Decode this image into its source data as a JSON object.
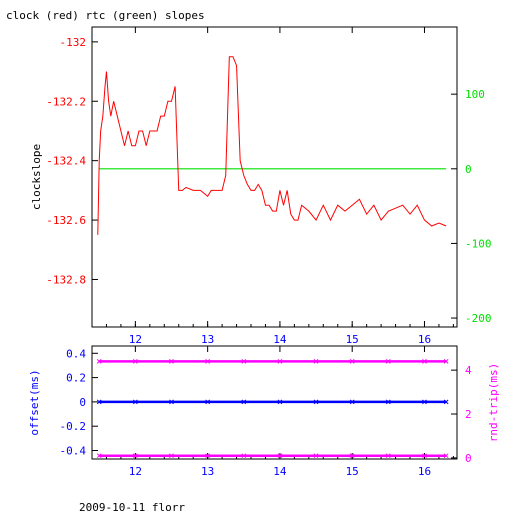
{
  "title": "clock (red) rtc (green) slopes",
  "footer": "2009-10-11 florr",
  "colors": {
    "red": "#ff0000",
    "green": "#00e000",
    "blue": "#0000ff",
    "magenta": "#ff00ff",
    "axis": "#000000"
  },
  "chart_data": [
    {
      "type": "line",
      "name": "top",
      "ylabel": "clockslope",
      "xlim": [
        11.4,
        16.45
      ],
      "ylim": [
        -132.96,
        -131.95
      ],
      "y2lim": [
        -212,
        190
      ],
      "xticks": [
        12,
        13,
        14,
        15,
        16
      ],
      "x_tick_labels": [
        "12",
        "13",
        "14",
        "15",
        "16"
      ],
      "yticks": [
        -132,
        -132.2,
        -132.4,
        -132.6,
        -132.8
      ],
      "y_tick_labels": [
        "-132",
        "-132.2",
        "-132.4",
        "-132.6",
        "-132.8"
      ],
      "y2ticks": [
        100,
        0,
        -100,
        -200
      ],
      "y2_tick_labels": [
        "100",
        "0",
        "-100",
        "-200"
      ],
      "series": [
        {
          "color": "red",
          "axis": "left",
          "x": [
            11.48,
            11.5,
            11.52,
            11.55,
            11.58,
            11.6,
            11.63,
            11.66,
            11.7,
            11.75,
            11.8,
            11.85,
            11.9,
            11.95,
            12.0,
            12.05,
            12.1,
            12.15,
            12.2,
            12.25,
            12.3,
            12.35,
            12.4,
            12.45,
            12.5,
            12.55,
            12.6,
            12.65,
            12.7,
            12.8,
            12.9,
            13.0,
            13.05,
            13.1,
            13.15,
            13.2,
            13.25,
            13.3,
            13.35,
            13.4,
            13.45,
            13.5,
            13.55,
            13.6,
            13.65,
            13.7,
            13.75,
            13.8,
            13.85,
            13.9,
            13.95,
            14.0,
            14.05,
            14.1,
            14.15,
            14.2,
            14.25,
            14.3,
            14.4,
            14.5,
            14.6,
            14.7,
            14.8,
            14.9,
            15.0,
            15.1,
            15.2,
            15.3,
            15.4,
            15.5,
            15.6,
            15.7,
            15.8,
            15.9,
            16.0,
            16.1,
            16.2,
            16.3
          ],
          "y": [
            -132.65,
            -132.4,
            -132.3,
            -132.25,
            -132.15,
            -132.1,
            -132.2,
            -132.25,
            -132.2,
            -132.25,
            -132.3,
            -132.35,
            -132.3,
            -132.35,
            -132.35,
            -132.3,
            -132.3,
            -132.35,
            -132.3,
            -132.3,
            -132.3,
            -132.25,
            -132.25,
            -132.2,
            -132.2,
            -132.15,
            -132.5,
            -132.5,
            -132.49,
            -132.5,
            -132.5,
            -132.52,
            -132.5,
            -132.5,
            -132.5,
            -132.5,
            -132.45,
            -132.05,
            -132.05,
            -132.08,
            -132.4,
            -132.45,
            -132.48,
            -132.5,
            -132.5,
            -132.48,
            -132.5,
            -132.55,
            -132.55,
            -132.57,
            -132.57,
            -132.5,
            -132.55,
            -132.5,
            -132.58,
            -132.6,
            -132.6,
            -132.55,
            -132.57,
            -132.6,
            -132.55,
            -132.6,
            -132.55,
            -132.57,
            -132.55,
            -132.53,
            -132.58,
            -132.55,
            -132.6,
            -132.57,
            -132.56,
            -132.55,
            -132.58,
            -132.55,
            -132.6,
            -132.62,
            -132.61,
            -132.62
          ]
        },
        {
          "color": "green",
          "axis": "right",
          "x": [
            11.5,
            12.0,
            12.5,
            13.0,
            13.5,
            14.0,
            14.5,
            15.0,
            15.5,
            16.0,
            16.3
          ],
          "y": [
            0,
            0,
            0,
            0,
            0,
            0,
            0,
            0,
            0,
            0,
            0
          ]
        }
      ]
    },
    {
      "type": "scatter",
      "name": "bottom",
      "ylabel": "offset(ms)",
      "y2label": "rnd-trip(ms)",
      "xlim": [
        11.4,
        16.45
      ],
      "ylim": [
        -0.47,
        0.46
      ],
      "y2lim": [
        -0.05,
        5.1
      ],
      "xticks": [
        12,
        13,
        14,
        15,
        16
      ],
      "x_tick_labels": [
        "12",
        "13",
        "14",
        "15",
        "16"
      ],
      "yticks": [
        0.4,
        0.2,
        0,
        -0.2,
        -0.4
      ],
      "y_tick_labels": [
        "0.4",
        "0.2",
        "0",
        "-0.2",
        "-0.4"
      ],
      "y2ticks": [
        4,
        2,
        0
      ],
      "y2_tick_labels": [
        "4",
        "2",
        "0"
      ],
      "series": [
        {
          "color": "blue",
          "axis": "left",
          "x": [
            11.5,
            12.0,
            12.5,
            13.0,
            13.5,
            14.0,
            14.5,
            15.0,
            15.5,
            16.0,
            16.3
          ],
          "y": [
            0,
            0,
            0,
            0,
            0,
            0,
            0,
            0,
            0,
            0,
            0
          ]
        },
        {
          "color": "magenta",
          "axis": "right",
          "x": [
            11.5,
            12.0,
            12.5,
            13.0,
            13.5,
            14.0,
            14.5,
            15.0,
            15.5,
            16.0,
            16.3
          ],
          "y": [
            4.4,
            4.4,
            4.4,
            4.4,
            4.4,
            4.4,
            4.4,
            4.4,
            4.4,
            4.4,
            4.4
          ]
        },
        {
          "color": "magenta",
          "axis": "right",
          "x": [
            11.5,
            12.0,
            12.5,
            13.0,
            13.5,
            14.0,
            14.5,
            15.0,
            15.5,
            16.0,
            16.3
          ],
          "y": [
            0.1,
            0.1,
            0.1,
            0.1,
            0.1,
            0.1,
            0.1,
            0.1,
            0.1,
            0.1,
            0.1
          ]
        }
      ]
    }
  ]
}
